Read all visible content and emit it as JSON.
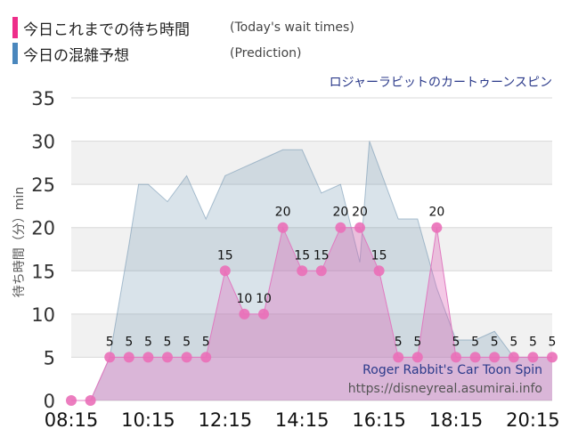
{
  "legend": {
    "items": [
      {
        "label": "今日これまでの待ち時間",
        "sub": "(Today's wait times)",
        "color": "#ee2d8a"
      },
      {
        "label": "今日の混雑予想",
        "sub": "(Prediction)",
        "color": "#4a87bd"
      }
    ]
  },
  "chart_data": {
    "type": "area",
    "title": "ロジャーラビットのカートゥーンスピン",
    "ylabel": "待ち時間（分）min",
    "xlabel": "",
    "ylim": [
      0,
      35
    ],
    "y_ticks": [
      0,
      5,
      10,
      15,
      20,
      25,
      30,
      35
    ],
    "x_range": [
      "08:15",
      "20:45"
    ],
    "x_ticks": [
      "08:15",
      "10:15",
      "12:15",
      "14:15",
      "16:15",
      "18:15",
      "20:15"
    ],
    "grid": "horizontal",
    "footer_lines": [
      "Roger Rabbit's Car Toon Spin",
      "https://disneyreal.asumirai.info"
    ],
    "series": [
      {
        "name": "(Today's wait times)",
        "color": "#ee2d8a",
        "x": [
          "08:15",
          "08:45",
          "09:15",
          "09:45",
          "10:15",
          "10:45",
          "11:15",
          "11:45",
          "12:15",
          "12:45",
          "13:15",
          "13:45",
          "14:15",
          "14:45",
          "15:15",
          "15:45",
          "16:15",
          "16:45",
          "17:15",
          "17:45",
          "18:15",
          "18:45",
          "19:15",
          "19:45",
          "20:15",
          "20:45"
        ],
        "values": [
          0,
          0,
          5,
          5,
          5,
          5,
          5,
          5,
          15,
          10,
          10,
          20,
          15,
          15,
          20,
          20,
          15,
          5,
          5,
          20,
          5,
          5,
          5,
          5,
          5,
          5
        ],
        "labels": [
          "",
          "",
          "5",
          "5",
          "5",
          "5",
          "5",
          "5",
          "15",
          "10",
          "10",
          "20",
          "15",
          "15",
          "20",
          "20",
          "15",
          "5",
          "5",
          "20",
          "5",
          "5",
          "5",
          "5",
          "5",
          "5"
        ]
      },
      {
        "name": "(Prediction)",
        "color": "#4a87bd",
        "x": [
          "08:15",
          "08:45",
          "09:15",
          "09:45",
          "10:00",
          "10:15",
          "10:45",
          "11:15",
          "11:45",
          "12:15",
          "12:45",
          "13:15",
          "13:45",
          "14:15",
          "14:45",
          "15:15",
          "15:45",
          "16:00",
          "16:15",
          "16:45",
          "17:15",
          "17:45",
          "18:15",
          "18:45",
          "19:15",
          "19:45",
          "20:15",
          "20:45"
        ],
        "values": [
          0,
          0,
          5,
          18,
          25,
          25,
          23,
          26,
          21,
          26,
          27,
          28,
          29,
          29,
          24,
          25,
          16,
          30,
          27,
          21,
          21,
          13,
          7,
          7,
          8,
          5,
          5,
          5
        ]
      }
    ]
  }
}
